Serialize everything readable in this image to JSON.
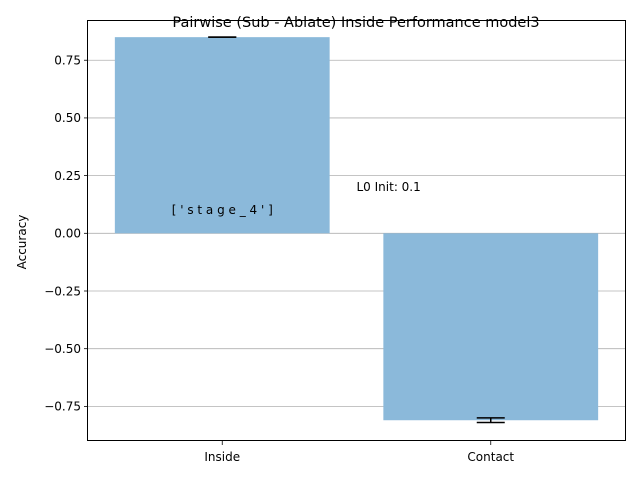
{
  "chart_data": {
    "type": "bar",
    "title": "Pairwise (Sub - Ablate) Inside Performance model3",
    "xlabel": "",
    "ylabel": "Accuracy",
    "categories": [
      "Inside",
      "Contact"
    ],
    "values": [
      0.85,
      -0.81
    ],
    "errors": [
      0.0,
      0.01
    ],
    "ylim": [
      -0.9,
      0.92
    ],
    "yticks": [
      0.75,
      0.5,
      0.25,
      0.0,
      -0.25,
      -0.5,
      -0.75
    ],
    "ytick_labels": [
      "0.75",
      "0.50",
      "0.25",
      "0.00",
      "−0.25",
      "−0.50",
      "−0.75"
    ],
    "grid": "y",
    "bar_color": "#8bb9da",
    "annotations": [
      {
        "text": "[ ' s t a g e _ 4 ' ]",
        "x": 0,
        "y": 0.1
      },
      {
        "text": "L0 Init: 0.1",
        "x": 0.5,
        "y": 0.2
      }
    ]
  }
}
